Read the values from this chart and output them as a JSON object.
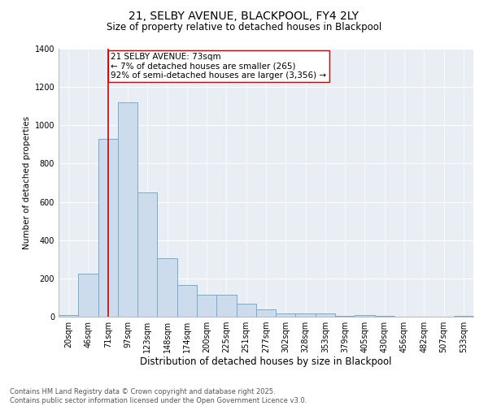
{
  "title": "21, SELBY AVENUE, BLACKPOOL, FY4 2LY",
  "subtitle": "Size of property relative to detached houses in Blackpool",
  "xlabel": "Distribution of detached houses by size in Blackpool",
  "ylabel": "Number of detached properties",
  "bar_labels": [
    "20sqm",
    "46sqm",
    "71sqm",
    "97sqm",
    "123sqm",
    "148sqm",
    "174sqm",
    "200sqm",
    "225sqm",
    "251sqm",
    "277sqm",
    "302sqm",
    "328sqm",
    "353sqm",
    "379sqm",
    "405sqm",
    "430sqm",
    "456sqm",
    "482sqm",
    "507sqm",
    "533sqm"
  ],
  "bar_heights": [
    10,
    225,
    930,
    1120,
    650,
    305,
    165,
    115,
    115,
    70,
    40,
    15,
    15,
    15,
    5,
    10,
    3,
    2,
    2,
    0,
    3
  ],
  "bar_color": "#ccdcec",
  "bar_edgecolor": "#7aabcc",
  "vline_x_index": 2,
  "vline_color": "#cc0000",
  "annotation_text": "21 SELBY AVENUE: 73sqm\n← 7% of detached houses are smaller (265)\n92% of semi-detached houses are larger (3,356) →",
  "annotation_box_edgecolor": "#cc0000",
  "annotation_fontsize": 7.5,
  "ylim": [
    0,
    1400
  ],
  "yticks": [
    0,
    200,
    400,
    600,
    800,
    1000,
    1200,
    1400
  ],
  "bg_color": "#e8eef4",
  "grid_color": "#ffffff",
  "footer_line1": "Contains HM Land Registry data © Crown copyright and database right 2025.",
  "footer_line2": "Contains public sector information licensed under the Open Government Licence v3.0.",
  "title_fontsize": 10,
  "subtitle_fontsize": 8.5,
  "xlabel_fontsize": 8.5,
  "ylabel_fontsize": 7.5,
  "tick_fontsize": 7,
  "footer_fontsize": 6
}
